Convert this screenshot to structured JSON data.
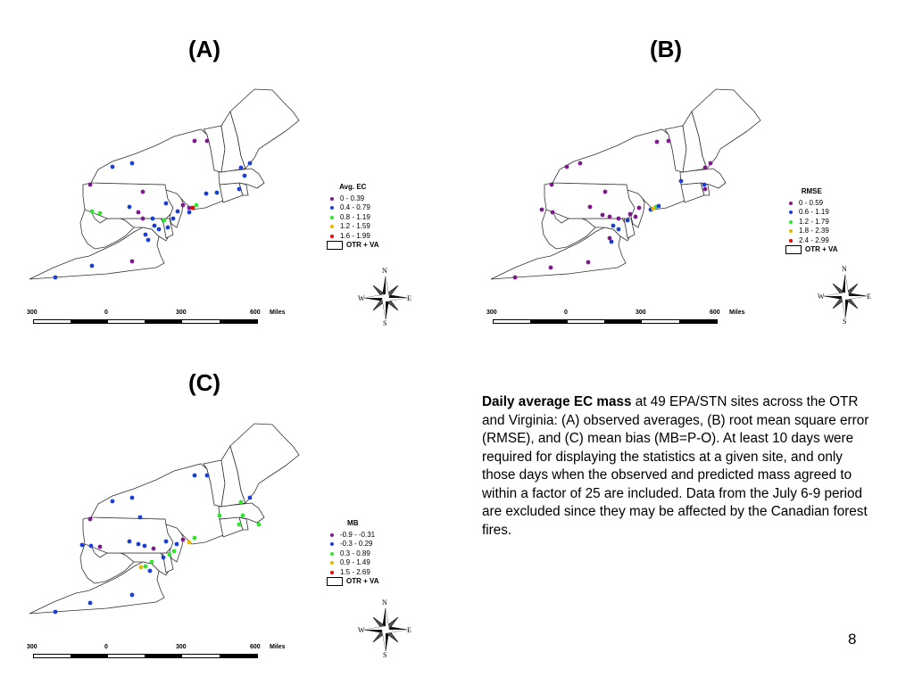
{
  "panels": [
    {
      "id": "A",
      "title": "(A)",
      "legend_title": "Avg. EC",
      "legend_items": [
        {
          "label": "0 - 0.39",
          "color": "#7f1a8c"
        },
        {
          "label": "0.4 - 0.79",
          "color": "#1a3fd6"
        },
        {
          "label": "0.8 - 1.19",
          "color": "#2ee62e"
        },
        {
          "label": "1.2 - 1.59",
          "color": "#e6b800"
        },
        {
          "label": "1.6 - 1.99",
          "color": "#e60000"
        }
      ],
      "boundary_label": "OTR + VA"
    },
    {
      "id": "B",
      "title": "(B)",
      "legend_title": "RMSE",
      "legend_items": [
        {
          "label": "0 - 0.59",
          "color": "#7f1a8c"
        },
        {
          "label": "0.6 - 1.19",
          "color": "#1a3fd6"
        },
        {
          "label": "1.2 - 1.79",
          "color": "#2ee62e"
        },
        {
          "label": "1.8 - 2.39",
          "color": "#e6b800"
        },
        {
          "label": "2.4 - 2.99",
          "color": "#e60000"
        }
      ],
      "boundary_label": "OTR + VA"
    },
    {
      "id": "C",
      "title": "(C)",
      "legend_title": "MB",
      "legend_items": [
        {
          "label": "-0.9 - -0.31",
          "color": "#7f1a8c"
        },
        {
          "label": "-0.3 - 0.29",
          "color": "#1a3fd6"
        },
        {
          "label": "0.3 - 0.89",
          "color": "#2ee62e"
        },
        {
          "label": "0.9 - 1.49",
          "color": "#e6b800"
        },
        {
          "label": "1.5 - 2.69",
          "color": "#e60000"
        }
      ],
      "boundary_label": "OTR + VA"
    }
  ],
  "scale": {
    "labels": [
      "300",
      "0",
      "300",
      "600"
    ],
    "unit": "Miles"
  },
  "compass": {
    "n": "N",
    "s": "S",
    "e": "E",
    "w": "W"
  },
  "caption": {
    "bold": "Daily average EC mass",
    "text": " at 49 EPA/STN sites across the OTR and Virginia: (A) observed averages, (B) root mean square error (RMSE), and (C) mean bias (MB=P-O).  At least 10 days were required for displaying the statistics at a given site, and only those days when the observed and predicted mass agreed to within a factor of 25 are included.  Data from the July 6-9 period are excluded since they may be affected by the Canadian forest fires."
  },
  "slide_number": "8"
}
